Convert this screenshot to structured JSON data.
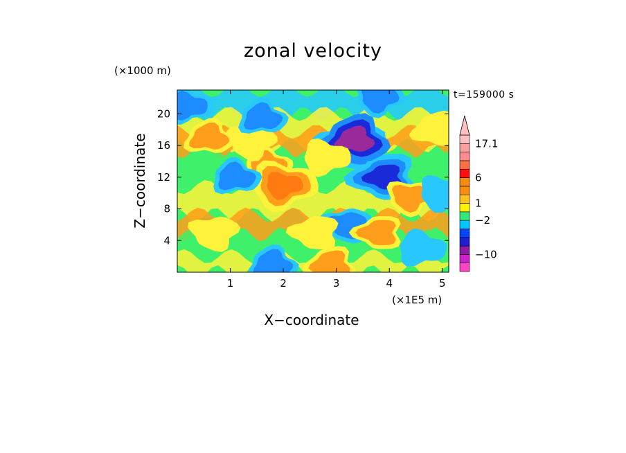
{
  "chart_data": {
    "type": "heatmap",
    "title": "zonal velocity",
    "xlabel": "X−coordinate",
    "ylabel": "Z−coordinate",
    "x_multiplier": "(×1E5 m)",
    "y_multiplier": "(×1000 m)",
    "time_label": "t=159000 s",
    "x_ticks": [
      "1",
      "2",
      "3",
      "4",
      "5"
    ],
    "y_ticks": [
      "4",
      "8",
      "12",
      "16",
      "20"
    ],
    "xlim": [
      0,
      5.12
    ],
    "ylim": [
      0,
      23
    ],
    "colorbar_labels": [
      "17.1",
      "6",
      "1",
      "−2",
      "−10"
    ],
    "colorbar_levels": [
      "#ff44c6",
      "#cc22cc",
      "#8f1aa6",
      "#1f1fd2",
      "#0046ff",
      "#00c8ff",
      "#32e878",
      "#fff200",
      "#ffc21a",
      "#ff8c10",
      "#f58c10",
      "#ff1010",
      "#ff7040",
      "#ff8c8c",
      "#f8a0a0",
      "#ffc0c0"
    ],
    "field_colors": {
      "strong_neg": "#1a2ad8",
      "neg": "#28c8ff",
      "weak_neg": "#3ef06a",
      "weak_pos": "#fff23a",
      "pos": "#ff9e1a",
      "strong_pos": "#ff7a10",
      "extreme_neg": "#9a2a9a"
    },
    "field_features": [
      {
        "x": 0.6,
        "z": 17,
        "sign": "pos",
        "level": 2
      },
      {
        "x": 1.7,
        "z": 13.5,
        "sign": "pos",
        "level": 2
      },
      {
        "x": 2.0,
        "z": 11,
        "sign": "pos",
        "level": 3
      },
      {
        "x": 1.4,
        "z": 16.5,
        "sign": "pos",
        "level": 1
      },
      {
        "x": 3.3,
        "z": 16,
        "sign": "neg",
        "level": 3
      },
      {
        "x": 3.9,
        "z": 12,
        "sign": "neg",
        "level": 3
      },
      {
        "x": 3.35,
        "z": 16.7,
        "sign": "neg",
        "level": 4
      },
      {
        "x": 1.1,
        "z": 12,
        "sign": "neg",
        "level": 2
      },
      {
        "x": 2.8,
        "z": 14.5,
        "sign": "pos",
        "level": 1
      },
      {
        "x": 4.4,
        "z": 9.5,
        "sign": "pos",
        "level": 2
      },
      {
        "x": 3.2,
        "z": 6,
        "sign": "neg",
        "level": 2
      },
      {
        "x": 3.8,
        "z": 5,
        "sign": "pos",
        "level": 2
      },
      {
        "x": 4.9,
        "z": 18,
        "sign": "pos",
        "level": 1
      },
      {
        "x": 1.6,
        "z": 19.5,
        "sign": "neg",
        "level": 2
      },
      {
        "x": 0.2,
        "z": 21,
        "sign": "neg",
        "level": 2
      },
      {
        "x": 3.8,
        "z": 22,
        "sign": "neg",
        "level": 2
      },
      {
        "x": 0.7,
        "z": 5,
        "sign": "pos",
        "level": 1
      },
      {
        "x": 2.6,
        "z": 5,
        "sign": "pos",
        "level": 1
      },
      {
        "x": 2.9,
        "z": 1,
        "sign": "pos",
        "level": 2
      },
      {
        "x": 1.8,
        "z": 1,
        "sign": "neg",
        "level": 2
      },
      {
        "x": 4.6,
        "z": 3,
        "sign": "neg",
        "level": 1
      },
      {
        "x": 5.0,
        "z": 10,
        "sign": "neg",
        "level": 1
      }
    ]
  }
}
